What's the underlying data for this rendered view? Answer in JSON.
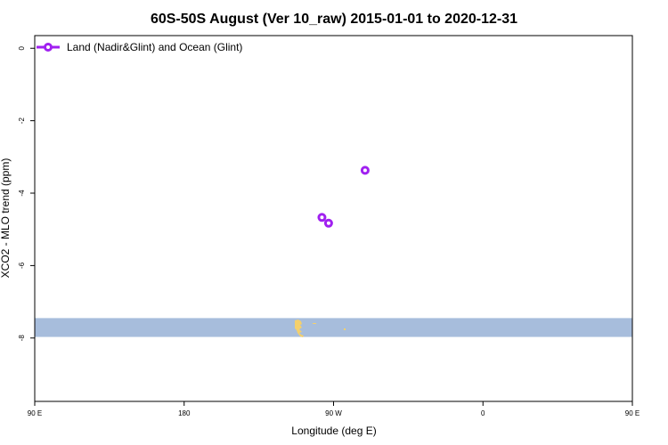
{
  "chart_data": {
    "type": "scatter",
    "title": "60S-50S August (Ver 10_raw)   2015-01-01 to 2020-12-31",
    "xlabel": "Longitude (deg E)",
    "ylabel": "XCO2 - MLO trend (ppm)",
    "xlim": [
      90,
      450
    ],
    "ylim": [
      -9.75,
      0.35
    ],
    "x_ticks": [
      {
        "value": 90,
        "label": "90 E"
      },
      {
        "value": 180,
        "label": "180"
      },
      {
        "value": 270,
        "label": "90 W"
      },
      {
        "value": 360,
        "label": "0"
      },
      {
        "value": 450,
        "label": "90 E"
      },
      {
        "value": 540,
        "label": "180"
      }
    ],
    "y_ticks": [
      {
        "value": 0,
        "label": "0"
      },
      {
        "value": -2,
        "label": "-2"
      },
      {
        "value": -4,
        "label": "-4"
      },
      {
        "value": -6,
        "label": "-6"
      },
      {
        "value": -8,
        "label": "-8"
      }
    ],
    "legend": {
      "position": "top-left",
      "entries": [
        "Land (Nadir&Glint) and Ocean (Glint)"
      ]
    },
    "series": [
      {
        "name": "Land (Nadir&Glint) and Ocean (Glint)",
        "color": "#a020f0",
        "marker": "open-circle",
        "points": [
          {
            "x": 289,
            "y": -3.37
          },
          {
            "x": 263,
            "y": -4.67
          },
          {
            "x": 267,
            "y": -4.83
          }
        ]
      }
    ],
    "latitude_band": {
      "y_from": -7.45,
      "y_to": -7.97,
      "color": "#a7bddc"
    },
    "land_color": "#f4d06c",
    "grid": false
  }
}
